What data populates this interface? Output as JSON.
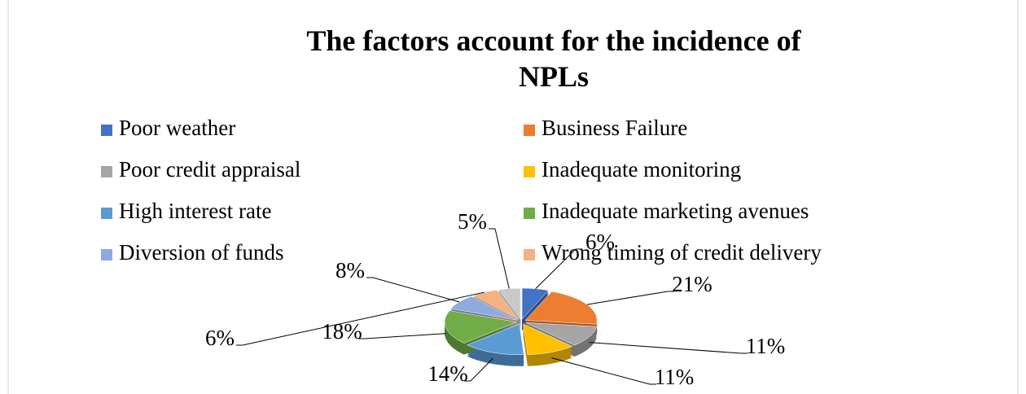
{
  "chart_data": {
    "type": "pie3d",
    "title": "The factors account for the incidence of NPLs",
    "categories": [
      "Poor weather",
      "Business Failure",
      "Poor credit appraisal",
      "Inadequate monitoring",
      "High interest rate",
      "Inadequate marketing avenues",
      "Diversion of funds",
      "Wrong timing of credit delivery",
      null
    ],
    "values": [
      6,
      21,
      11,
      11,
      14,
      18,
      8,
      6,
      5
    ],
    "value_labels": [
      "6%",
      "21%",
      "11%",
      "11%",
      "14%",
      "18%",
      "8%",
      "6%",
      "5%"
    ],
    "colors": [
      "#4472c4",
      "#ed7d31",
      "#a5a5a5",
      "#ffc000",
      "#5b9bd5",
      "#70ad47",
      "#8faadc",
      "#f4b183",
      "#c9c9c9"
    ],
    "legend": "top"
  }
}
